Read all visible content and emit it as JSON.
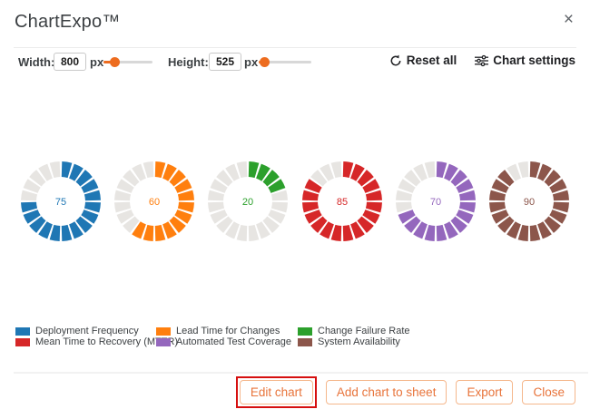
{
  "dialog": {
    "title": "ChartExpo™",
    "close_icon": "×"
  },
  "controls": {
    "width": {
      "label": "Width:",
      "value": "800",
      "unit": "px",
      "slider_pct": 23
    },
    "height": {
      "label": "Height:",
      "value": "525",
      "unit": "px",
      "slider_pct": 12
    },
    "reset": {
      "label": "Reset all"
    },
    "chart_settings": {
      "label": "Chart settings"
    }
  },
  "chart_data": {
    "type": "donut",
    "subtype": "segmented-gauge-row",
    "segments_per_donut": 20,
    "max_value": 100,
    "empty_segment_color": "#e7e5e2",
    "legend_position": "bottom-left",
    "charts": [
      {
        "name": "Deployment Frequency",
        "value": 75,
        "color": "#1f77b4"
      },
      {
        "name": "Lead Time for Changes",
        "value": 60,
        "color": "#ff7f0e"
      },
      {
        "name": "Change Failure Rate",
        "value": 20,
        "color": "#2ca02c"
      },
      {
        "name": "Mean Time to Recovery (MTTR)",
        "value": 85,
        "color": "#d62728"
      },
      {
        "name": "Automated Test Coverage",
        "value": 70,
        "color": "#9467bd"
      },
      {
        "name": "System Availability",
        "value": 90,
        "color": "#8c564b"
      }
    ]
  },
  "footer": {
    "buttons": [
      {
        "label": "Edit chart",
        "annotated": true,
        "annotation_color": "#d60f0f"
      },
      {
        "label": "Add chart to sheet"
      },
      {
        "label": "Export"
      },
      {
        "label": "Close"
      }
    ]
  },
  "theme": {
    "accent_orange": "#ed6c1f",
    "button_text": "#e8743b",
    "button_border": "#f5b78c",
    "text": "#3c4043"
  }
}
